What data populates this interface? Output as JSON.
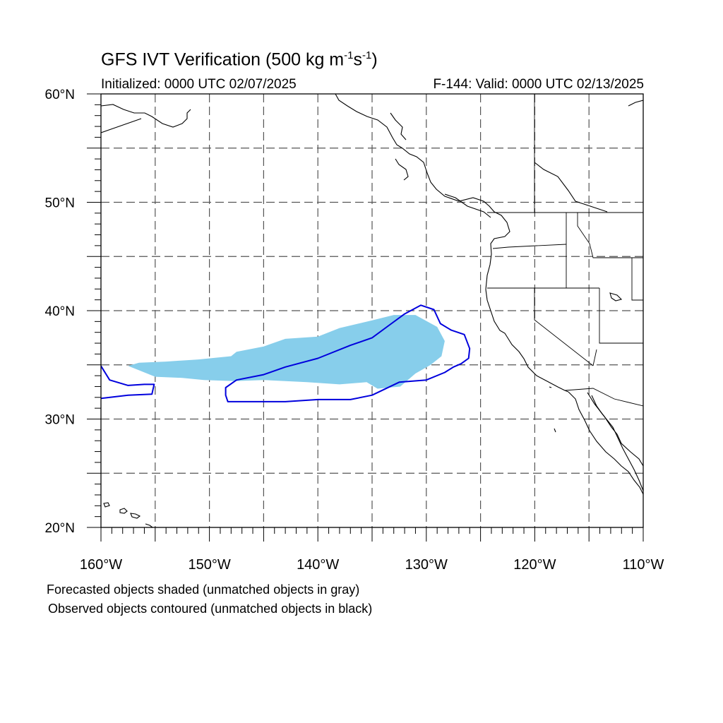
{
  "title": {
    "prefix": "GFS IVT Verification (500 kg m",
    "sup1": "-1",
    "mid": "s",
    "sup2": "-1",
    "suffix": ")"
  },
  "initialized_label": "Initialized: 0000 UTC 02/07/2025",
  "valid_label": "F-144: Valid: 0000 UTC 02/13/2025",
  "notes": [
    "Forecasted objects shaded (unmatched objects in gray)",
    "Observed objects contoured (unmatched objects in black)"
  ],
  "map": {
    "lon_range": [
      -160,
      -110
    ],
    "lat_range": [
      20,
      60
    ],
    "lat_ticks": [
      "20°N",
      "30°N",
      "40°N",
      "50°N",
      "60°N"
    ],
    "lon_ticks": [
      "160°W",
      "150°W",
      "140°W",
      "130°W",
      "120°W",
      "110°W"
    ],
    "gridlines": "dashed every 5°",
    "colors": {
      "forecast_fill": "#87ceeb",
      "observed_contour": "#0000dd",
      "coast": "#000000",
      "grid": "#555555"
    },
    "forecast_object": [
      [
        -157.5,
        34.9
      ],
      [
        -156.5,
        35.2
      ],
      [
        -154,
        35.3
      ],
      [
        -151,
        35.5
      ],
      [
        -148,
        35.8
      ],
      [
        -147.5,
        36.2
      ],
      [
        -145,
        36.7
      ],
      [
        -143,
        37.4
      ],
      [
        -140,
        37.6
      ],
      [
        -138,
        38.4
      ],
      [
        -135,
        39.1
      ],
      [
        -133,
        39.6
      ],
      [
        -131,
        39.6
      ],
      [
        -129,
        38.5
      ],
      [
        -128.3,
        37.2
      ],
      [
        -128.6,
        35.8
      ],
      [
        -129.6,
        35
      ],
      [
        -131,
        34.2
      ],
      [
        -132.4,
        33
      ],
      [
        -134.5,
        32.8
      ],
      [
        -135.5,
        33.4
      ],
      [
        -138,
        33.2
      ],
      [
        -141,
        33.4
      ],
      [
        -145,
        33.6
      ],
      [
        -147.7,
        33.5
      ],
      [
        -150.5,
        33.6
      ],
      [
        -152.5,
        33.8
      ],
      [
        -155,
        33.9
      ],
      [
        -156.5,
        34.5
      ]
    ],
    "observed_objects": [
      [
        [
          -148.5,
          32.9
        ],
        [
          -147.5,
          33.6
        ],
        [
          -145,
          34.1
        ],
        [
          -143,
          34.8
        ],
        [
          -140,
          35.6
        ],
        [
          -137,
          36.8
        ],
        [
          -135,
          37.5
        ],
        [
          -133.5,
          38.6
        ],
        [
          -132,
          39.7
        ],
        [
          -130.5,
          40.5
        ],
        [
          -129.3,
          40.1
        ],
        [
          -128.7,
          38.8
        ],
        [
          -127.7,
          38.2
        ],
        [
          -126.5,
          37.8
        ],
        [
          -126,
          36.5
        ],
        [
          -126.1,
          35.6
        ],
        [
          -126.8,
          35.1
        ],
        [
          -127.5,
          34.8
        ],
        [
          -128.3,
          34.3
        ],
        [
          -130,
          33.6
        ],
        [
          -132.5,
          33.4
        ],
        [
          -135,
          32.2
        ],
        [
          -137,
          31.8
        ],
        [
          -140,
          31.8
        ],
        [
          -143,
          31.6
        ],
        [
          -145,
          31.6
        ],
        [
          -147.5,
          31.6
        ],
        [
          -148.3,
          31.6
        ],
        [
          -148.5,
          32.2
        ]
      ],
      [
        [
          -160,
          34.9
        ],
        [
          -159.2,
          33.6
        ],
        [
          -157.5,
          33.1
        ],
        [
          -156,
          33.2
        ],
        [
          -155.1,
          33.2
        ],
        [
          -155.3,
          32.3
        ],
        [
          -157.5,
          32.2
        ],
        [
          -160,
          31.9
        ]
      ]
    ]
  }
}
